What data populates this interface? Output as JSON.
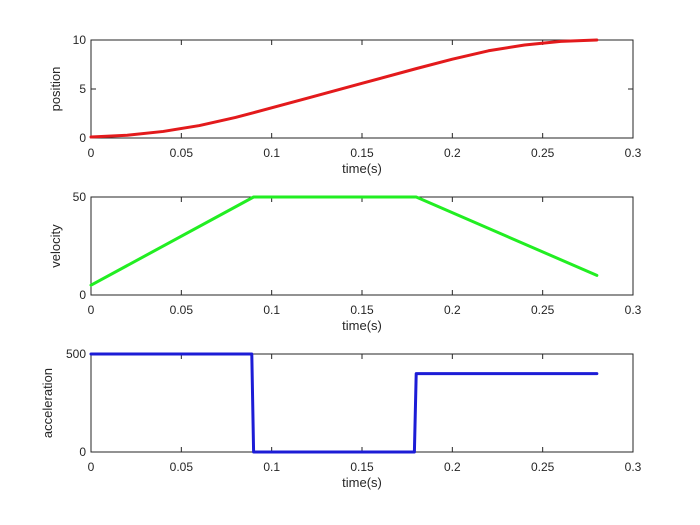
{
  "chart_data": [
    {
      "type": "line",
      "xlabel": "time(s)",
      "ylabel": "position",
      "xlim": [
        0,
        0.3
      ],
      "ylim": [
        0,
        10
      ],
      "xticks": [
        "0",
        "0.05",
        "0.1",
        "0.15",
        "0.2",
        "0.25",
        "0.3"
      ],
      "yticks": [
        "0",
        "5",
        "10"
      ],
      "grid": false,
      "series": [
        {
          "color": "#e31a1c",
          "x": [
            0,
            0.02,
            0.04,
            0.06,
            0.08,
            0.09,
            0.12,
            0.15,
            0.18,
            0.2,
            0.22,
            0.24,
            0.26,
            0.28
          ],
          "y": [
            0.1,
            0.28,
            0.67,
            1.27,
            2.1,
            2.58,
            4.08,
            5.58,
            7.08,
            8.04,
            8.9,
            9.49,
            9.86,
            10.0
          ]
        }
      ]
    },
    {
      "type": "line",
      "xlabel": "time(s)",
      "ylabel": "velocity",
      "xlim": [
        0,
        0.3
      ],
      "ylim": [
        0,
        50
      ],
      "xticks": [
        "0",
        "0.05",
        "0.1",
        "0.15",
        "0.2",
        "0.25",
        "0.3"
      ],
      "yticks": [
        "0",
        "50"
      ],
      "grid": false,
      "series": [
        {
          "color": "#22ee22",
          "x": [
            0,
            0.09,
            0.18,
            0.28
          ],
          "y": [
            5,
            50,
            50,
            10
          ]
        }
      ]
    },
    {
      "type": "line",
      "xlabel": "time(s)",
      "ylabel": "acceleration",
      "xlim": [
        0,
        0.3
      ],
      "ylim": [
        0,
        500
      ],
      "xticks": [
        "0",
        "0.05",
        "0.1",
        "0.15",
        "0.2",
        "0.25",
        "0.3"
      ],
      "yticks": [
        "0",
        "500"
      ],
      "grid": false,
      "series": [
        {
          "color": "#1c1cd6",
          "x": [
            0,
            0.089,
            0.09,
            0.179,
            0.18,
            0.28
          ],
          "y": [
            500,
            500,
            0,
            0,
            400,
            400
          ]
        }
      ]
    }
  ]
}
